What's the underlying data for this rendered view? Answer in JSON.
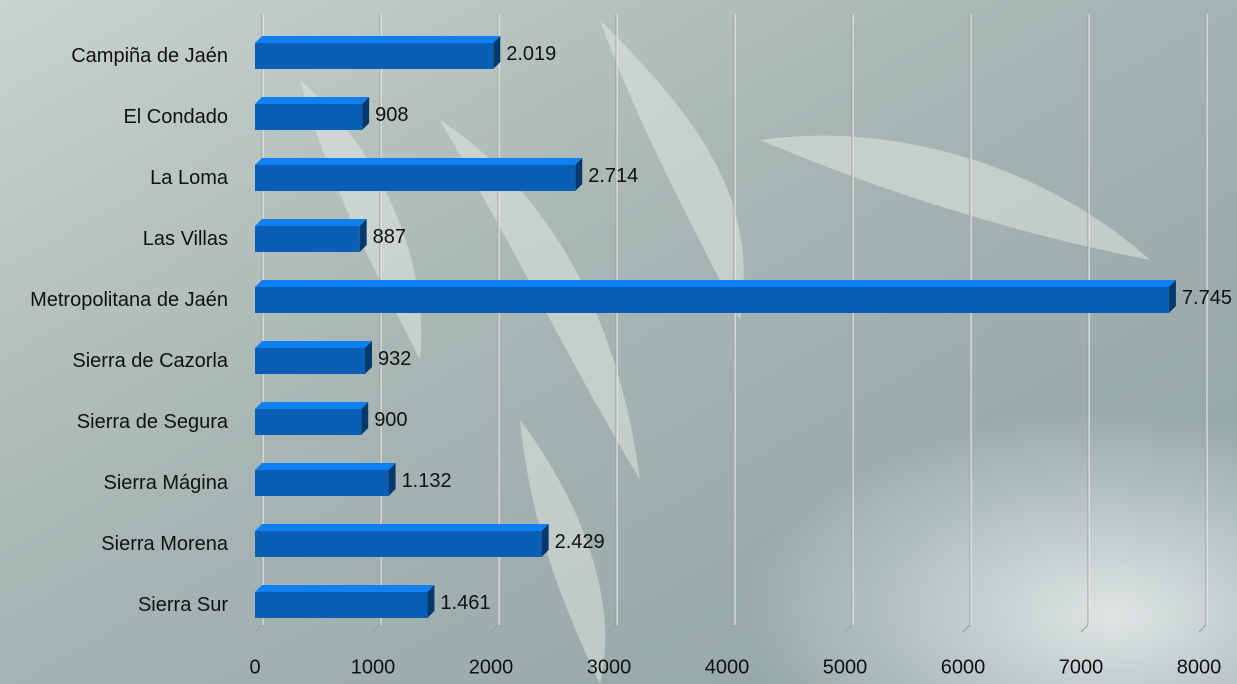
{
  "chart_data": {
    "type": "bar",
    "orientation": "horizontal",
    "categories": [
      "Campiña de Jaén",
      "El Condado",
      "La Loma",
      "Las Villas",
      "Metropolitana de Jaén",
      "Sierra de Cazorla",
      "Sierra de Segura",
      "Sierra Mágina",
      "Sierra Morena",
      "Sierra Sur"
    ],
    "values": [
      2019,
      908,
      2714,
      887,
      7745,
      932,
      900,
      1132,
      2429,
      1461
    ],
    "value_labels": [
      "2.019",
      "908",
      "2.714",
      "887",
      "7.745",
      "932",
      "900",
      "1.132",
      "2.429",
      "1.461"
    ],
    "color": "#0a5fb4",
    "xlim": [
      0,
      8000
    ],
    "xticks": [
      0,
      1000,
      2000,
      3000,
      4000,
      5000,
      6000,
      7000,
      8000
    ],
    "grid": true
  }
}
